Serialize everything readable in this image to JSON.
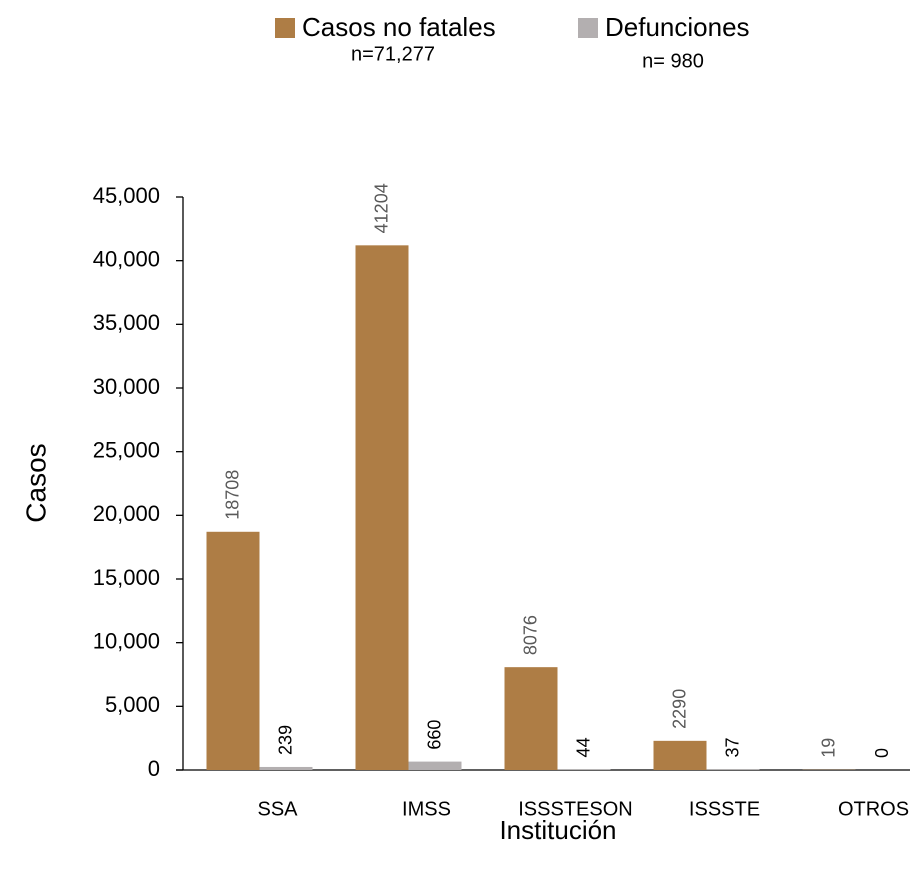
{
  "chart_data": {
    "type": "bar",
    "categories": [
      "SSA",
      "IMSS",
      "ISSSTESON",
      "ISSSTE",
      "OTROS"
    ],
    "series": [
      {
        "name": "Casos no fatales",
        "note": "n=71,277",
        "color": "#ae7d45",
        "label_color": "#595959",
        "values": [
          18708,
          41204,
          8076,
          2290,
          19
        ]
      },
      {
        "name": "Defunciones",
        "note": "n= 980",
        "color": "#b3afb0",
        "label_color": "#000000",
        "values": [
          239,
          660,
          44,
          37,
          0
        ]
      }
    ],
    "ylabel": "Casos",
    "xlabel": "Institución",
    "ylim": [
      0,
      45000
    ],
    "yticks": [
      0,
      {
        "value": 5000,
        "label": "5,000"
      },
      {
        "value": 10000,
        "label": "10,000"
      },
      {
        "value": 15000,
        "label": "15,000"
      },
      {
        "value": 20000,
        "label": "20,000"
      },
      {
        "value": 25000,
        "label": "25,000"
      },
      {
        "value": 30000,
        "label": "30,000"
      },
      {
        "value": 35000,
        "label": "35,000"
      },
      {
        "value": 40000,
        "label": "40,000"
      },
      {
        "value": 45000,
        "label": "45,000"
      }
    ],
    "legend": "top"
  }
}
